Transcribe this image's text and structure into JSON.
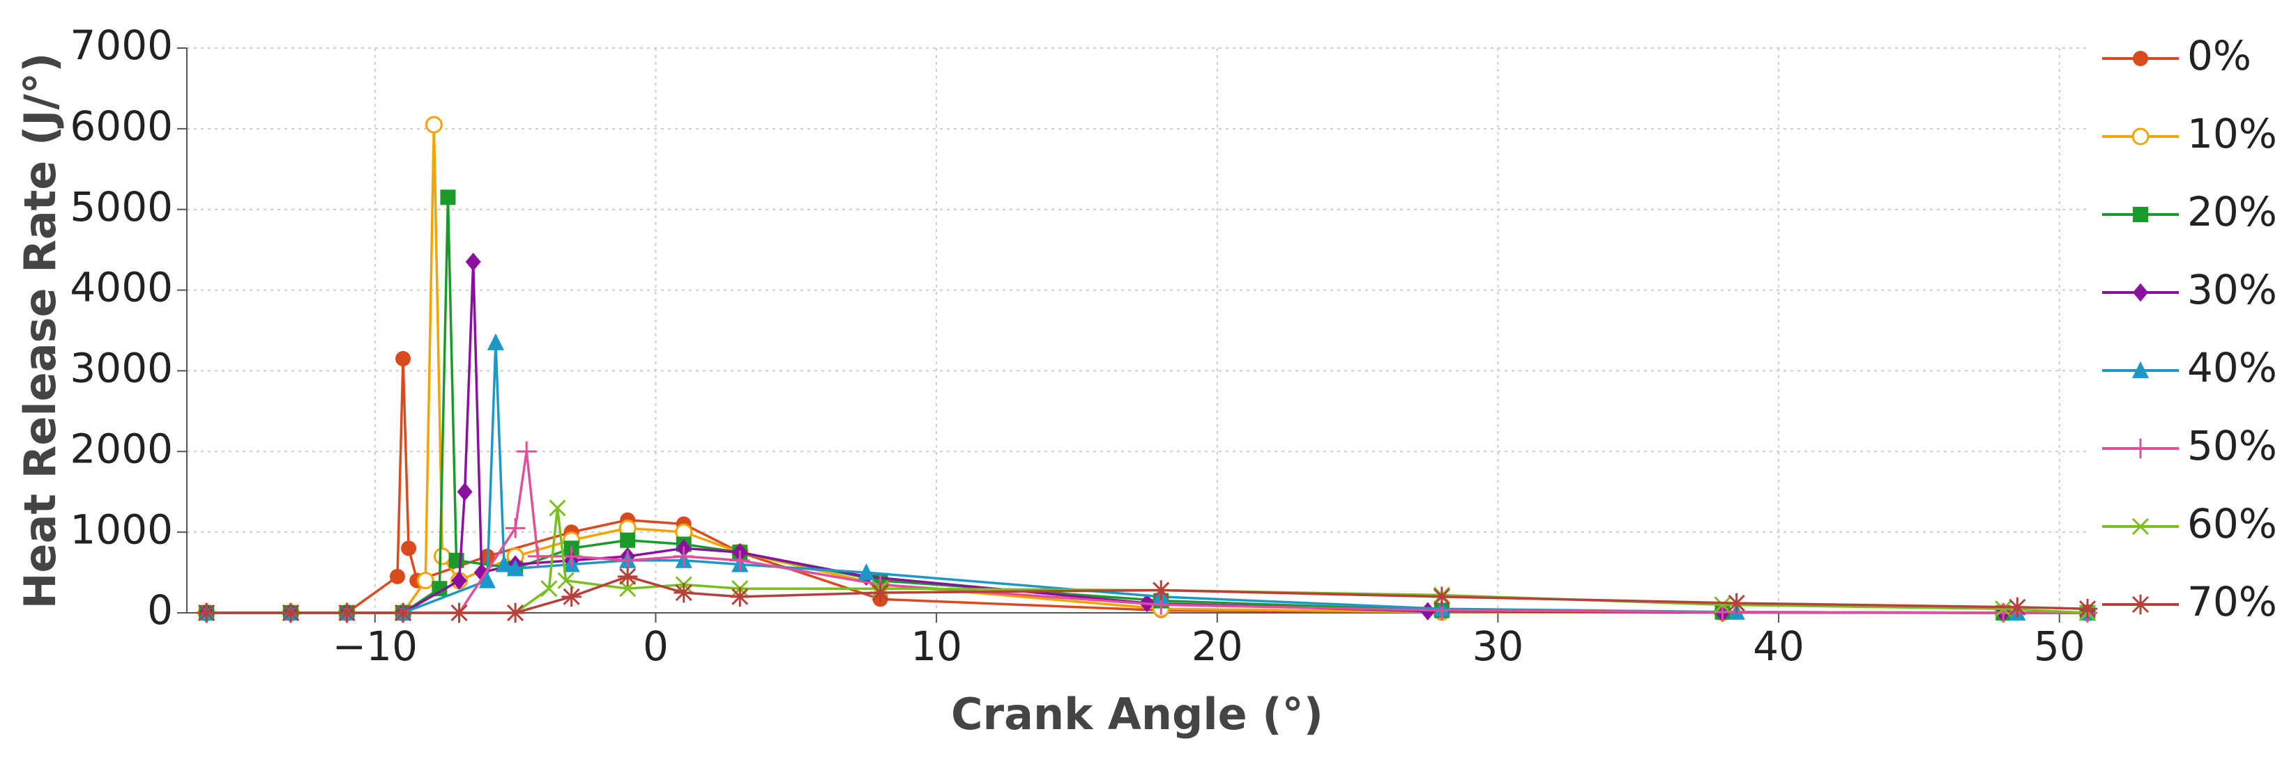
{
  "chart_data": {
    "type": "line",
    "xlabel": "Crank Angle (°)",
    "ylabel": "Heat Release Rate (J/°)",
    "xlim": [
      -16.7,
      51
    ],
    "ylim": [
      0,
      7000
    ],
    "xticks": [
      {
        "value": -10,
        "label": "−10"
      },
      0,
      10,
      20,
      30,
      40,
      50
    ],
    "yticks": [
      0,
      1000,
      2000,
      3000,
      4000,
      5000,
      6000,
      7000
    ],
    "grid": true,
    "legend": "right",
    "series": [
      {
        "name": "0%",
        "color": "#d94a1e",
        "marker": "circle",
        "x": [
          -16,
          -13,
          -11,
          -9.2,
          -9,
          -8.8,
          -8.5,
          -6,
          -3,
          -1,
          1,
          3,
          8,
          18,
          28,
          38,
          48,
          51
        ],
        "values": [
          0,
          0,
          0,
          450,
          3150,
          800,
          400,
          700,
          1000,
          1150,
          1100,
          750,
          170,
          30,
          10,
          5,
          0,
          0
        ]
      },
      {
        "name": "10%",
        "color": "#f5a300",
        "marker": "open-circle",
        "x": [
          -16,
          -13,
          -11,
          -9,
          -8.2,
          -7.9,
          -7.6,
          -7,
          -5,
          -3,
          -1,
          1,
          3,
          8,
          18,
          28,
          38,
          48,
          51
        ],
        "values": [
          0,
          0,
          0,
          0,
          400,
          6050,
          700,
          400,
          700,
          900,
          1050,
          1000,
          750,
          350,
          50,
          10,
          5,
          0,
          0
        ]
      },
      {
        "name": "20%",
        "color": "#1a9a2a",
        "marker": "square",
        "x": [
          -16,
          -13,
          -11,
          -9,
          -7.7,
          -7.4,
          -7.1,
          -5,
          -3,
          -1,
          1,
          3,
          8,
          18,
          28,
          38,
          48,
          51
        ],
        "values": [
          0,
          0,
          0,
          0,
          300,
          5150,
          650,
          550,
          800,
          900,
          850,
          750,
          400,
          150,
          30,
          10,
          0,
          0
        ]
      },
      {
        "name": "30%",
        "color": "#8b10a0",
        "marker": "diamond",
        "x": [
          -16,
          -13,
          -11,
          -9,
          -7,
          -6.8,
          -6.5,
          -6.2,
          -5,
          -3,
          -1,
          1,
          3,
          7.5,
          17.5,
          27.5,
          38,
          48,
          51
        ],
        "values": [
          0,
          0,
          0,
          0,
          400,
          1500,
          4350,
          500,
          600,
          650,
          700,
          800,
          750,
          450,
          120,
          20,
          5,
          0,
          0
        ]
      },
      {
        "name": "40%",
        "color": "#1b98c8",
        "marker": "triangle",
        "x": [
          -16,
          -13,
          -11,
          -9,
          -6,
          -5.7,
          -5.4,
          -5,
          -3,
          -1,
          1,
          3,
          7.5,
          18,
          28,
          38.5,
          48.5,
          51
        ],
        "values": [
          0,
          0,
          0,
          0,
          400,
          3350,
          600,
          550,
          600,
          650,
          650,
          600,
          500,
          200,
          50,
          10,
          0,
          0
        ]
      },
      {
        "name": "50%",
        "color": "#e0509a",
        "marker": "plus",
        "x": [
          -16,
          -13,
          -11,
          -9,
          -7,
          -5,
          -4.6,
          -4.2,
          -3,
          -1,
          1,
          3,
          8,
          18,
          28,
          38,
          48,
          51
        ],
        "values": [
          0,
          0,
          0,
          0,
          0,
          1050,
          2000,
          700,
          700,
          650,
          700,
          650,
          350,
          100,
          30,
          10,
          0,
          0
        ]
      },
      {
        "name": "60%",
        "color": "#7bbf1f",
        "marker": "cross",
        "x": [
          -16,
          -13,
          -11,
          -9,
          -7,
          -5,
          -3.8,
          -3.5,
          -3.2,
          -1,
          1,
          3,
          8,
          18,
          28,
          38,
          48,
          51
        ],
        "values": [
          0,
          0,
          0,
          0,
          0,
          0,
          300,
          1300,
          400,
          300,
          350,
          300,
          300,
          280,
          220,
          100,
          50,
          0
        ]
      },
      {
        "name": "70%",
        "color": "#b8403a",
        "marker": "star",
        "x": [
          -16,
          -13,
          -11,
          -9,
          -7,
          -5,
          -3,
          -1,
          1,
          3,
          8,
          18,
          28,
          38.5,
          48.5,
          51
        ],
        "values": [
          0,
          0,
          0,
          0,
          0,
          0,
          200,
          450,
          250,
          200,
          250,
          280,
          200,
          120,
          70,
          50
        ]
      }
    ]
  }
}
